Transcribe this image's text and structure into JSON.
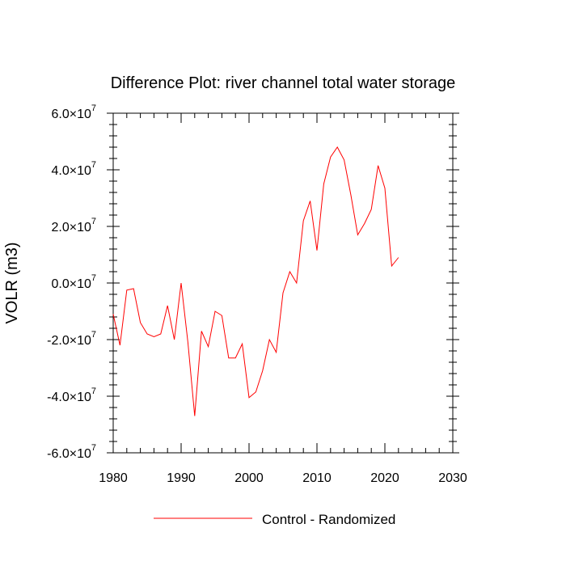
{
  "chart_data": {
    "type": "line",
    "title": "Difference Plot: river channel total water storage",
    "xlabel": "",
    "ylabel": "VOLR  (m3)",
    "xlim": [
      1980,
      2030
    ],
    "ylim": [
      -60000000,
      60000000
    ],
    "xticks": [
      1980,
      1990,
      2000,
      2010,
      2020,
      2030
    ],
    "xtick_labels": [
      "1980",
      "1990",
      "2000",
      "2010",
      "2020",
      "2030"
    ],
    "yticks": [
      {
        "mantissa": "-6.0",
        "exp": "7",
        "value": -60000000
      },
      {
        "mantissa": "-4.0",
        "exp": "7",
        "value": -40000000
      },
      {
        "mantissa": "-2.0",
        "exp": "7",
        "value": -20000000
      },
      {
        "mantissa": "0.0",
        "exp": "7",
        "value": 0
      },
      {
        "mantissa": "2.0",
        "exp": "7",
        "value": 20000000
      },
      {
        "mantissa": "4.0",
        "exp": "7",
        "value": 40000000
      },
      {
        "mantissa": "6.0",
        "exp": "7",
        "value": 60000000
      }
    ],
    "times_symbol": "×10",
    "legend_position": "bottom-center",
    "grid": false,
    "series": [
      {
        "name": "Control - Randomized",
        "color": "#ff0000",
        "x": [
          1980,
          1981,
          1982,
          1983,
          1984,
          1985,
          1986,
          1987,
          1988,
          1989,
          1990,
          1991,
          1992,
          1993,
          1994,
          1995,
          1996,
          1997,
          1998,
          1999,
          2000,
          2001,
          2002,
          2003,
          2004,
          2005,
          2006,
          2007,
          2008,
          2009,
          2010,
          2011,
          2012,
          2013,
          2014,
          2015,
          2016,
          2017,
          2018,
          2019,
          2020,
          2021,
          2022
        ],
        "y": [
          -11000000,
          -22000000,
          -2500000,
          -2000000,
          -14000000,
          -18000000,
          -19000000,
          -18000000,
          -8000000,
          -20000000,
          0,
          -21000000,
          -47000000,
          -17000000,
          -22500000,
          -10000000,
          -11500000,
          -26500000,
          -26500000,
          -21500000,
          -40500000,
          -38500000,
          -31000000,
          -20000000,
          -24500000,
          -3500000,
          4000000,
          0,
          22000000,
          29000000,
          11500000,
          35000000,
          44500000,
          48000000,
          43500000,
          31000000,
          17000000,
          21000000,
          26000000,
          41500000,
          33500000,
          6000000,
          9000000
        ]
      }
    ]
  }
}
